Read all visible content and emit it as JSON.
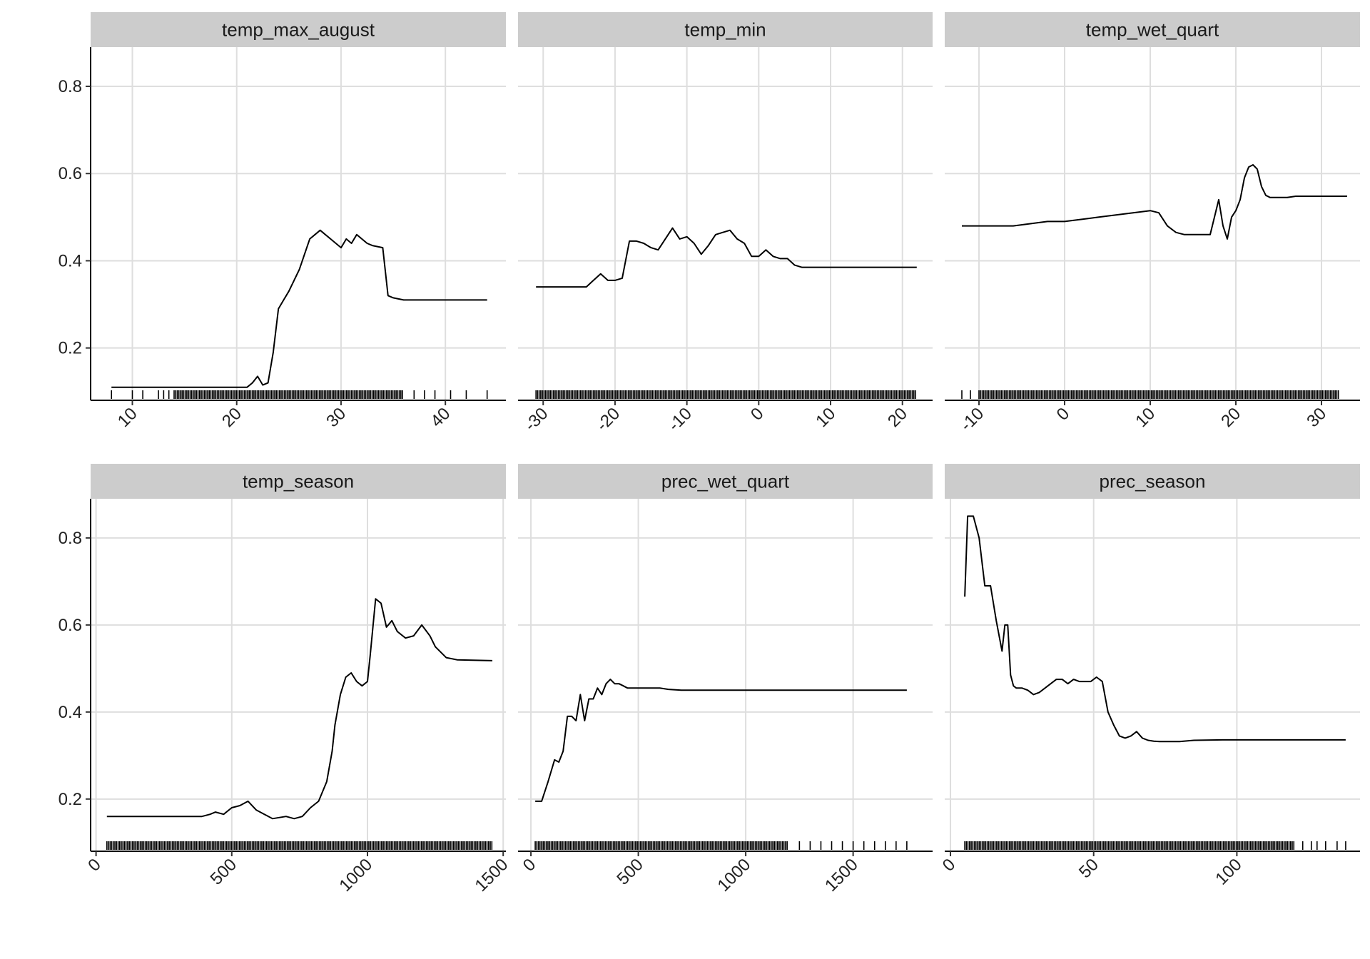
{
  "chart_data": [
    {
      "type": "line",
      "title": "temp_max_august",
      "xlim": [
        6.0,
        45.8
      ],
      "ylim": [
        0.08,
        0.89
      ],
      "x_ticks": [
        10,
        20,
        30,
        40
      ],
      "x_tick_labels": [
        "10",
        "20",
        "30",
        "40"
      ],
      "y_ticks": [
        0.2,
        0.4,
        0.6,
        0.8
      ],
      "y_tick_labels": [
        "0.2",
        "0.4",
        "0.6",
        "0.8"
      ],
      "grid": true,
      "series": [
        {
          "x": [
            8,
            21,
            21.5,
            22,
            22.5,
            23,
            23.5,
            24,
            24.5,
            25,
            26,
            27,
            27.5,
            28,
            28.5,
            29,
            30,
            30.5,
            31,
            31.5,
            32,
            32.5,
            33,
            34,
            34.5,
            35,
            36,
            44
          ],
          "y": [
            0.11,
            0.11,
            0.12,
            0.135,
            0.115,
            0.12,
            0.19,
            0.29,
            0.31,
            0.33,
            0.38,
            0.45,
            0.46,
            0.47,
            0.46,
            0.45,
            0.43,
            0.45,
            0.44,
            0.46,
            0.45,
            0.44,
            0.435,
            0.43,
            0.32,
            0.315,
            0.31,
            0.31
          ]
        }
      ],
      "rug": {
        "dense_range": [
          14,
          36
        ],
        "sparse": [
          8,
          10,
          11,
          12.5,
          13,
          13.5,
          37,
          38,
          39,
          40.5,
          42,
          44
        ]
      }
    },
    {
      "type": "line",
      "title": "temp_min",
      "xlim": [
        -33.5,
        24.2
      ],
      "ylim": [
        0.08,
        0.89
      ],
      "x_ticks": [
        -30,
        -20,
        -10,
        0,
        10,
        20
      ],
      "x_tick_labels": [
        "-30",
        "-20",
        "-10",
        "0",
        "10",
        "20"
      ],
      "y_ticks": [
        0.2,
        0.4,
        0.6,
        0.8
      ],
      "y_tick_labels": [
        "0.2",
        "0.4",
        "0.6",
        "0.8"
      ],
      "grid": true,
      "series": [
        {
          "x": [
            -31,
            -24,
            -23,
            -22,
            -21,
            -20,
            -19,
            -18,
            -17,
            -16,
            -15,
            -14,
            -13,
            -12,
            -11,
            -10,
            -9,
            -8,
            -7,
            -6,
            -5,
            -4,
            -3,
            -2,
            -1,
            0,
            1,
            2,
            3,
            4,
            5,
            6,
            7,
            8,
            10,
            22
          ],
          "y": [
            0.34,
            0.34,
            0.355,
            0.37,
            0.355,
            0.355,
            0.36,
            0.445,
            0.445,
            0.44,
            0.43,
            0.425,
            0.45,
            0.475,
            0.45,
            0.455,
            0.44,
            0.415,
            0.435,
            0.46,
            0.465,
            0.47,
            0.45,
            0.44,
            0.41,
            0.41,
            0.425,
            0.41,
            0.405,
            0.405,
            0.39,
            0.385,
            0.385,
            0.385,
            0.385,
            0.385
          ]
        }
      ],
      "rug": {
        "dense_range": [
          -31,
          22
        ],
        "sparse": []
      }
    },
    {
      "type": "line",
      "title": "temp_wet_quart",
      "xlim": [
        -14.0,
        34.5
      ],
      "ylim": [
        0.08,
        0.89
      ],
      "x_ticks": [
        -10,
        0,
        10,
        20,
        30
      ],
      "x_tick_labels": [
        "-10",
        "0",
        "10",
        "20",
        "30"
      ],
      "y_ticks": [
        0.2,
        0.4,
        0.6,
        0.8
      ],
      "y_tick_labels": [
        "0.2",
        "0.4",
        "0.6",
        "0.8"
      ],
      "grid": true,
      "series": [
        {
          "x": [
            -12,
            -6,
            -4,
            -2,
            0,
            2,
            4,
            6,
            8,
            10,
            11,
            12,
            13,
            14,
            15,
            16,
            17,
            18,
            18.5,
            19,
            19.5,
            20,
            20.5,
            21,
            21.5,
            22,
            22.5,
            23,
            23.5,
            24,
            25,
            26,
            27,
            28,
            33
          ],
          "y": [
            0.48,
            0.48,
            0.485,
            0.49,
            0.49,
            0.495,
            0.5,
            0.505,
            0.51,
            0.515,
            0.51,
            0.48,
            0.465,
            0.46,
            0.46,
            0.46,
            0.46,
            0.54,
            0.48,
            0.45,
            0.5,
            0.515,
            0.54,
            0.59,
            0.615,
            0.62,
            0.61,
            0.57,
            0.55,
            0.545,
            0.545,
            0.545,
            0.548,
            0.548,
            0.548
          ]
        }
      ],
      "rug": {
        "dense_range": [
          -10,
          32
        ],
        "sparse": [
          -12,
          -11
        ]
      }
    },
    {
      "type": "line",
      "title": "temp_season",
      "xlim": [
        -20,
        1510
      ],
      "ylim": [
        0.08,
        0.89
      ],
      "x_ticks": [
        0,
        500,
        1000,
        1500
      ],
      "x_tick_labels": [
        "0",
        "500",
        "1000",
        "1500"
      ],
      "y_ticks": [
        0.2,
        0.4,
        0.6,
        0.8
      ],
      "y_tick_labels": [
        "0.2",
        "0.4",
        "0.6",
        "0.8"
      ],
      "grid": true,
      "series": [
        {
          "x": [
            40,
            390,
            420,
            440,
            470,
            500,
            530,
            560,
            590,
            620,
            650,
            700,
            730,
            760,
            790,
            820,
            850,
            870,
            880,
            900,
            920,
            940,
            960,
            980,
            1000,
            1010,
            1030,
            1050,
            1070,
            1090,
            1110,
            1140,
            1170,
            1200,
            1230,
            1250,
            1290,
            1330,
            1460
          ],
          "y": [
            0.16,
            0.16,
            0.165,
            0.17,
            0.165,
            0.18,
            0.185,
            0.195,
            0.175,
            0.165,
            0.155,
            0.16,
            0.155,
            0.16,
            0.18,
            0.195,
            0.24,
            0.31,
            0.37,
            0.44,
            0.48,
            0.49,
            0.47,
            0.46,
            0.47,
            0.53,
            0.66,
            0.65,
            0.595,
            0.61,
            0.585,
            0.57,
            0.575,
            0.6,
            0.575,
            0.55,
            0.525,
            0.52,
            0.518
          ]
        }
      ],
      "rug": {
        "dense_range": [
          40,
          1460
        ],
        "sparse": []
      }
    },
    {
      "type": "line",
      "title": "prec_wet_quart",
      "xlim": [
        -60,
        1870
      ],
      "ylim": [
        0.08,
        0.89
      ],
      "x_ticks": [
        0,
        500,
        1000,
        1500
      ],
      "x_tick_labels": [
        "0",
        "500",
        "1000",
        "1500"
      ],
      "y_ticks": [
        0.2,
        0.4,
        0.6,
        0.8
      ],
      "y_tick_labels": [
        "0.2",
        "0.4",
        "0.6",
        "0.8"
      ],
      "grid": true,
      "series": [
        {
          "x": [
            20,
            50,
            80,
            110,
            130,
            150,
            170,
            190,
            210,
            230,
            250,
            270,
            290,
            310,
            330,
            350,
            370,
            390,
            410,
            430,
            450,
            480,
            520,
            560,
            600,
            640,
            700,
            1750
          ],
          "y": [
            0.195,
            0.195,
            0.24,
            0.29,
            0.285,
            0.31,
            0.39,
            0.39,
            0.38,
            0.44,
            0.38,
            0.43,
            0.43,
            0.455,
            0.44,
            0.465,
            0.475,
            0.465,
            0.465,
            0.46,
            0.455,
            0.455,
            0.455,
            0.455,
            0.455,
            0.452,
            0.45,
            0.45
          ]
        }
      ],
      "rug": {
        "dense_range": [
          20,
          1200
        ],
        "sparse": [
          1250,
          1300,
          1350,
          1400,
          1450,
          1500,
          1550,
          1600,
          1650,
          1700,
          1750
        ]
      }
    },
    {
      "type": "line",
      "title": "prec_season",
      "xlim": [
        -2,
        143
      ],
      "ylim": [
        0.08,
        0.89
      ],
      "x_ticks": [
        0,
        50,
        100
      ],
      "x_tick_labels": [
        "0",
        "50",
        "100"
      ],
      "y_ticks": [
        0.2,
        0.4,
        0.6,
        0.8
      ],
      "y_tick_labels": [
        "0.2",
        "0.4",
        "0.6",
        "0.8"
      ],
      "grid": true,
      "series": [
        {
          "x": [
            5,
            6,
            8,
            10,
            12,
            14,
            16,
            18,
            19,
            20,
            21,
            22,
            23,
            25,
            27,
            29,
            31,
            33,
            35,
            37,
            39,
            41,
            43,
            45,
            47,
            49,
            51,
            53,
            55,
            57,
            59,
            61,
            63,
            65,
            67,
            69,
            71,
            73,
            75,
            80,
            85,
            95,
            138
          ],
          "y": [
            0.665,
            0.85,
            0.85,
            0.8,
            0.69,
            0.69,
            0.61,
            0.54,
            0.6,
            0.6,
            0.485,
            0.46,
            0.455,
            0.455,
            0.45,
            0.44,
            0.445,
            0.455,
            0.465,
            0.475,
            0.475,
            0.465,
            0.475,
            0.47,
            0.47,
            0.47,
            0.48,
            0.47,
            0.4,
            0.37,
            0.345,
            0.34,
            0.345,
            0.355,
            0.34,
            0.335,
            0.333,
            0.332,
            0.332,
            0.332,
            0.335,
            0.336,
            0.336
          ]
        }
      ],
      "rug": {
        "dense_range": [
          5,
          120
        ],
        "sparse": [
          123,
          126,
          128,
          131,
          135,
          138
        ]
      }
    }
  ]
}
